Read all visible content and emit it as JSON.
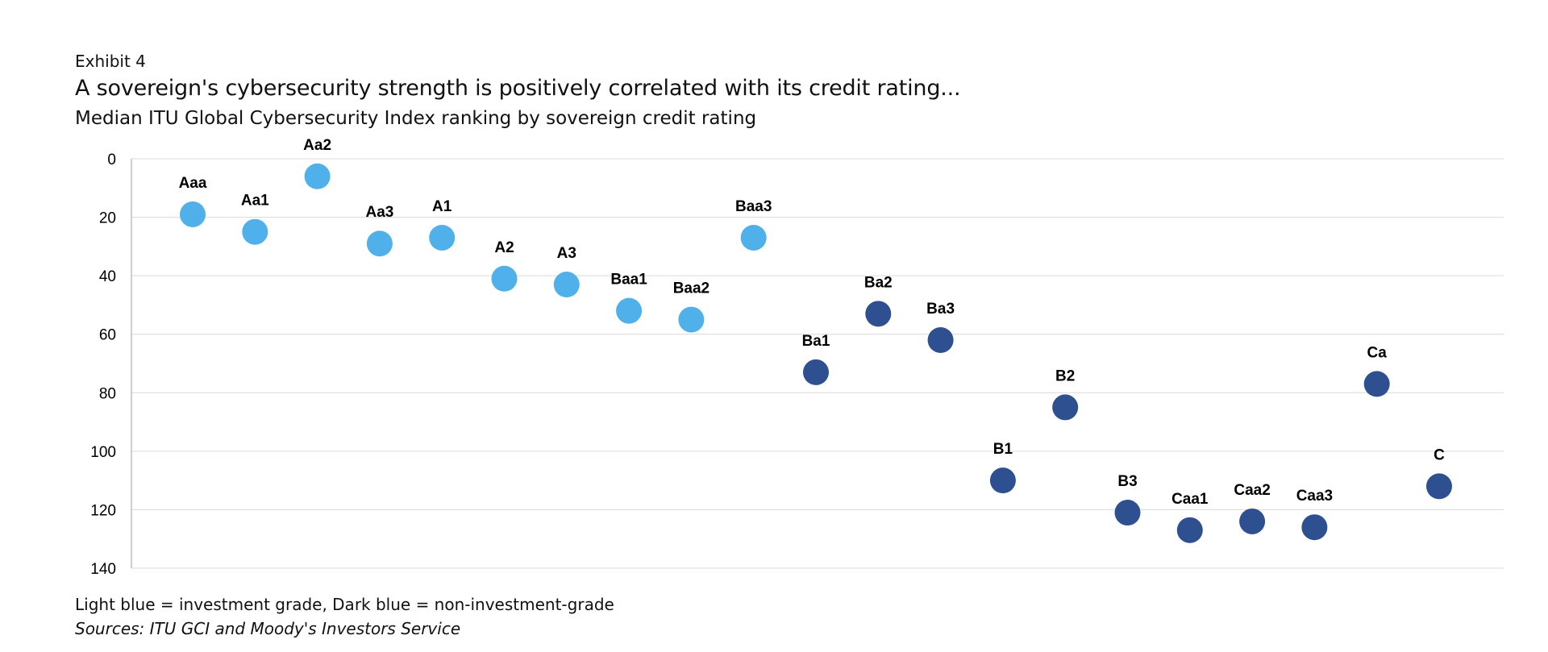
{
  "header": {
    "exhibit": "Exhibit 4",
    "title": "A sovereign's cybersecurity strength is positively correlated with its credit rating...",
    "subtitle": "Median ITU Global Cybersecurity Index ranking by sovereign credit rating"
  },
  "footer": {
    "note": "Light blue = investment grade, Dark blue = non-investment-grade",
    "source": "Sources: ITU GCI and Moody's Investors Service"
  },
  "colors": {
    "investment_grade": "#4FB0EA",
    "non_investment_grade": "#2E5090",
    "gridline": "#D9D9D9",
    "axis": "#BFBFBF"
  },
  "chart_data": {
    "type": "scatter",
    "ylabel": "",
    "xlabel": "",
    "ylim": [
      0,
      140
    ],
    "y_inverted": true,
    "y_ticks": [
      0,
      20,
      40,
      60,
      80,
      100,
      120,
      140
    ],
    "grid": true,
    "points": [
      {
        "label": "Aaa",
        "value": 19,
        "grade": "investment"
      },
      {
        "label": "Aa1",
        "value": 25,
        "grade": "investment"
      },
      {
        "label": "Aa2",
        "value": 6,
        "grade": "investment"
      },
      {
        "label": "Aa3",
        "value": 29,
        "grade": "investment"
      },
      {
        "label": "A1",
        "value": 27,
        "grade": "investment"
      },
      {
        "label": "A2",
        "value": 41,
        "grade": "investment"
      },
      {
        "label": "A3",
        "value": 43,
        "grade": "investment"
      },
      {
        "label": "Baa1",
        "value": 52,
        "grade": "investment"
      },
      {
        "label": "Baa2",
        "value": 55,
        "grade": "investment"
      },
      {
        "label": "Baa3",
        "value": 27,
        "grade": "investment"
      },
      {
        "label": "Ba1",
        "value": 73,
        "grade": "non-investment"
      },
      {
        "label": "Ba2",
        "value": 53,
        "grade": "non-investment"
      },
      {
        "label": "Ba3",
        "value": 62,
        "grade": "non-investment"
      },
      {
        "label": "B1",
        "value": 110,
        "grade": "non-investment"
      },
      {
        "label": "B2",
        "value": 85,
        "grade": "non-investment"
      },
      {
        "label": "B3",
        "value": 121,
        "grade": "non-investment"
      },
      {
        "label": "Caa1",
        "value": 127,
        "grade": "non-investment"
      },
      {
        "label": "Caa2",
        "value": 124,
        "grade": "non-investment"
      },
      {
        "label": "Caa3",
        "value": 126,
        "grade": "non-investment"
      },
      {
        "label": "Ca",
        "value": 77,
        "grade": "non-investment"
      },
      {
        "label": "C",
        "value": 112,
        "grade": "non-investment"
      }
    ]
  }
}
